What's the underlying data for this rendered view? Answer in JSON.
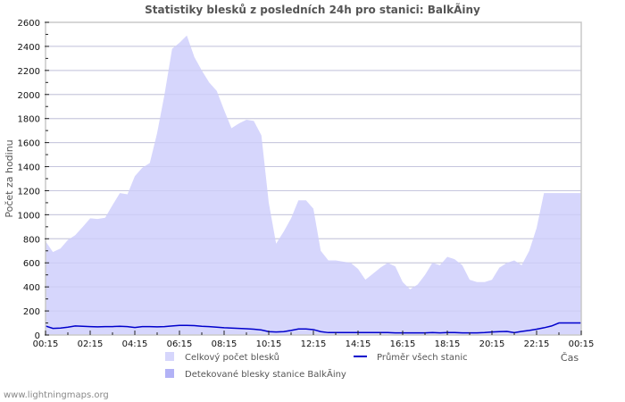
{
  "title": "Statistiky blesků z posledních 24h pro stanici: BalkÃiny",
  "footer": "www.lightningmaps.org",
  "colors": {
    "total_fill": "#d6d6fc",
    "station_fill": "#b2b2f6",
    "average_line": "#0000cc",
    "grid": "#c8c8c8",
    "frame": "#c8c8c8"
  },
  "chart_data": {
    "type": "area",
    "title": "Statistiky blesků z posledních 24h pro stanici: BalkÃiny",
    "xlabel": "Čas",
    "ylabel": "Počet za hodinu",
    "ylim": [
      0,
      2600
    ],
    "yticks": [
      0,
      200,
      400,
      600,
      800,
      1000,
      1200,
      1400,
      1600,
      1800,
      2000,
      2200,
      2400,
      2600
    ],
    "xtick_labels": [
      "00:15",
      "02:15",
      "04:15",
      "06:15",
      "08:15",
      "10:15",
      "12:15",
      "14:15",
      "16:15",
      "18:15",
      "20:15",
      "22:15",
      "00:15"
    ],
    "grid": true,
    "legend_position": "bottom",
    "legend": [
      {
        "label": "Celkový počet blesků",
        "type": "area",
        "color": "#d6d6fc"
      },
      {
        "label": "Průměr všech stanic",
        "type": "line",
        "color": "#0000cc"
      },
      {
        "label": "Detekované blesky stanice BalkÃiny",
        "type": "area",
        "color": "#b2b2f6"
      }
    ],
    "x_hours": [
      0,
      0.33,
      0.67,
      1,
      1.33,
      1.67,
      2,
      2.33,
      2.67,
      3,
      3.33,
      3.67,
      4,
      4.33,
      4.67,
      5,
      5.33,
      5.67,
      6,
      6.33,
      6.67,
      7,
      7.33,
      7.67,
      8,
      8.33,
      8.67,
      9,
      9.33,
      9.67,
      10,
      10.33,
      10.67,
      11,
      11.33,
      11.67,
      12,
      12.33,
      12.67,
      13,
      13.33,
      13.67,
      14,
      14.33,
      14.67,
      15,
      15.33,
      15.67,
      16,
      16.33,
      16.67,
      17,
      17.33,
      17.67,
      18,
      18.33,
      18.67,
      19,
      19.33,
      19.67,
      20,
      20.33,
      20.67,
      21,
      21.33,
      21.67,
      22,
      22.33,
      22.67,
      23,
      23.33,
      23.67,
      24
    ],
    "series": [
      {
        "name": "Celkový počet blesků",
        "values": [
          780,
          690,
          720,
          790,
          830,
          900,
          970,
          965,
          975,
          1080,
          1180,
          1170,
          1320,
          1390,
          1430,
          1680,
          2000,
          2380,
          2430,
          2490,
          2310,
          2200,
          2100,
          2030,
          1870,
          1720,
          1760,
          1790,
          1780,
          1660,
          1100,
          760,
          860,
          970,
          1120,
          1120,
          1050,
          700,
          620,
          620,
          610,
          600,
          550,
          460,
          510,
          560,
          600,
          570,
          440,
          380,
          420,
          500,
          600,
          580,
          650,
          630,
          580,
          460,
          440,
          440,
          460,
          560,
          600,
          620,
          580,
          700,
          890,
          1180,
          1180,
          1180,
          1180,
          1180,
          1180
        ],
        "color": "#d6d6fc"
      },
      {
        "name": "Průměr všech stanic",
        "values": [
          75,
          55,
          58,
          65,
          75,
          72,
          70,
          68,
          70,
          70,
          72,
          70,
          62,
          70,
          70,
          68,
          70,
          75,
          80,
          80,
          78,
          72,
          70,
          65,
          60,
          58,
          55,
          52,
          48,
          42,
          28,
          25,
          28,
          38,
          50,
          50,
          45,
          28,
          20,
          20,
          20,
          20,
          20,
          20,
          20,
          20,
          20,
          18,
          18,
          18,
          18,
          18,
          20,
          18,
          20,
          20,
          18,
          18,
          18,
          20,
          25,
          28,
          30,
          20,
          30,
          38,
          48,
          60,
          75,
          100,
          100,
          100,
          100
        ],
        "color": "#0000cc"
      },
      {
        "name": "Detekované blesky stanice BalkÃiny",
        "values": [
          0,
          0,
          0,
          0,
          0,
          0,
          0,
          0,
          0,
          0,
          0,
          0,
          0,
          0,
          0,
          0,
          0,
          0,
          0,
          0,
          0,
          0,
          0,
          0,
          0,
          0,
          0,
          0,
          0,
          0,
          0,
          0,
          0,
          0,
          0,
          0,
          0,
          0,
          0,
          0,
          0,
          0,
          0,
          0,
          0,
          0,
          0,
          0,
          0,
          0,
          0,
          0,
          0,
          0,
          0,
          0,
          0,
          0,
          0,
          0,
          0,
          0,
          0,
          0,
          0,
          0,
          0,
          0,
          0,
          0,
          0,
          0,
          0
        ],
        "color": "#b2b2f6"
      }
    ]
  }
}
